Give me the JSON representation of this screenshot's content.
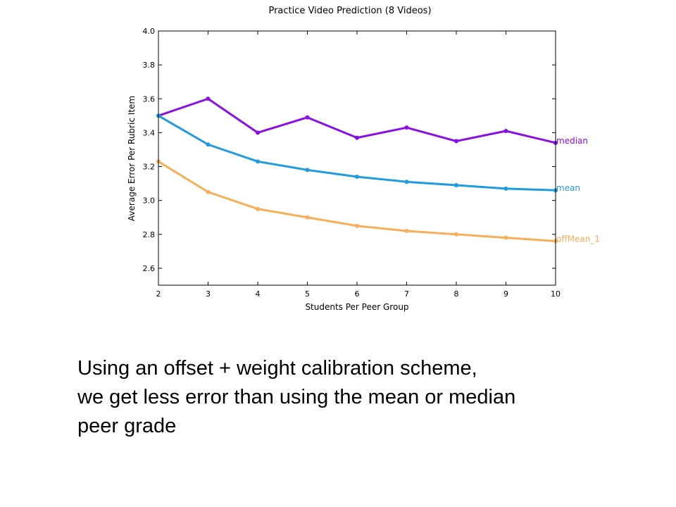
{
  "chart_data": {
    "type": "line",
    "title": "Practice Video Prediction (8 Videos)",
    "xlabel": "Students Per Peer Group",
    "ylabel": "Average Error Per Rubric Item",
    "x": [
      2,
      3,
      4,
      5,
      6,
      7,
      8,
      9,
      10
    ],
    "xlim": [
      2,
      10
    ],
    "ylim": [
      2.5,
      4.0
    ],
    "xticks": [
      2,
      3,
      4,
      5,
      6,
      7,
      8,
      9,
      10
    ],
    "yticks": [
      2.6,
      2.8,
      3.0,
      3.2,
      3.4,
      3.6,
      3.8,
      4.0
    ],
    "grid": false,
    "legend": "series labels at right end of lines",
    "series": [
      {
        "name": "median",
        "color": "#8a0ee6",
        "values": [
          3.5,
          3.6,
          3.4,
          3.49,
          3.37,
          3.43,
          3.35,
          3.41,
          3.34
        ]
      },
      {
        "name": "mean",
        "color": "#1f9be0",
        "values": [
          3.5,
          3.33,
          3.23,
          3.18,
          3.14,
          3.11,
          3.09,
          3.07,
          3.06
        ]
      },
      {
        "name": "offMean_1",
        "color": "#f8ad57",
        "values": [
          3.23,
          3.05,
          2.95,
          2.9,
          2.85,
          2.82,
          2.8,
          2.78,
          2.76
        ]
      }
    ]
  },
  "caption": {
    "line1": "Using an offset + weight calibration scheme,",
    "line2": "we get less error than using the mean or median",
    "line3": "peer grade"
  }
}
